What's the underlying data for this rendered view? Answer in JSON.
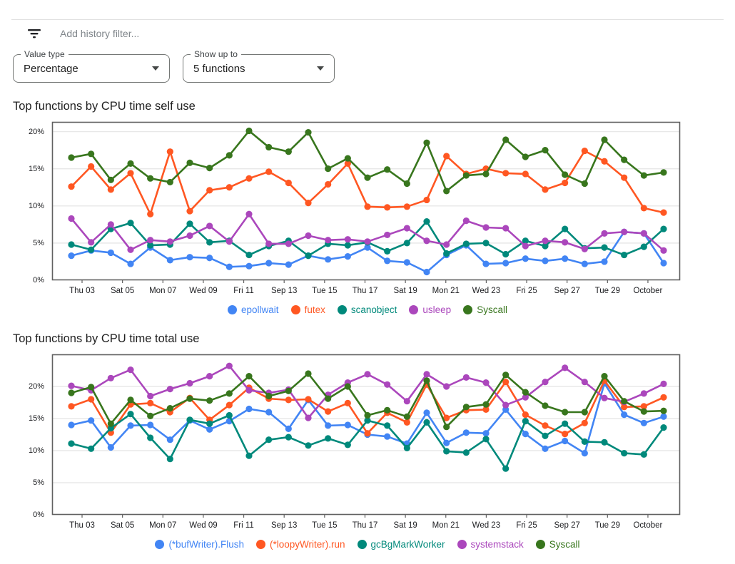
{
  "filter_bar": {
    "placeholder": "Add history filter...",
    "icon": "filter-list-icon"
  },
  "controls": {
    "value_type": {
      "label": "Value type",
      "value": "Percentage"
    },
    "show_up_to": {
      "label": "Show up to",
      "value": "5 functions"
    }
  },
  "colors": {
    "blue": "#4285F4",
    "orange": "#FF5722",
    "teal": "#00897B",
    "purple": "#AB47BC",
    "green": "#38761D",
    "axis": "#616161",
    "grid": "#e8e8e8",
    "tick_text": "#202124"
  },
  "chart_data": [
    {
      "type": "line",
      "title": "Top functions by CPU time self use",
      "x_labels": [
        "Thu 03",
        "Sat 05",
        "Mon 07",
        "Wed 09",
        "Fri 11",
        "Sep 13",
        "Tue 15",
        "Thu 17",
        "Sat 19",
        "Mon 21",
        "Wed 23",
        "Fri 25",
        "Sep 27",
        "Tue 29",
        "October"
      ],
      "y_tick_values": [
        0,
        5,
        10,
        15,
        20
      ],
      "y_tick_labels": [
        "0%",
        "5%",
        "10%",
        "15%",
        "20%"
      ],
      "ylim": [
        0,
        21.3
      ],
      "grid": true,
      "legend_position": "bottom",
      "series": [
        {
          "name": "epollwait",
          "color": "#4285F4",
          "values": [
            3.3,
            4.0,
            3.7,
            2.2,
            4.4,
            2.7,
            3.1,
            3.0,
            1.8,
            1.9,
            2.3,
            2.1,
            3.3,
            2.8,
            3.2,
            4.4,
            2.6,
            2.4,
            1.1,
            3.4,
            4.7,
            2.2,
            2.3,
            2.9,
            2.6,
            2.9,
            2.2,
            2.5,
            6.5,
            6.3,
            2.3
          ]
        },
        {
          "name": "futex",
          "color": "#FF5722",
          "values": [
            12.6,
            15.3,
            12.2,
            14.4,
            8.9,
            17.3,
            9.3,
            12.1,
            12.5,
            13.7,
            14.6,
            13.1,
            10.4,
            12.9,
            15.7,
            9.9,
            9.8,
            9.9,
            10.8,
            16.7,
            14.3,
            15.0,
            14.4,
            14.3,
            12.2,
            13.1,
            17.4,
            16.0,
            13.8,
            9.7,
            9.1
          ]
        },
        {
          "name": "scanobject",
          "color": "#00897B",
          "values": [
            4.8,
            4.1,
            6.9,
            7.7,
            4.7,
            4.8,
            7.6,
            5.1,
            5.3,
            3.4,
            4.6,
            5.3,
            3.3,
            4.9,
            4.7,
            5.1,
            3.9,
            5.0,
            7.9,
            3.6,
            4.9,
            5.0,
            3.5,
            5.3,
            4.6,
            6.9,
            4.3,
            4.4,
            3.4,
            4.5,
            6.9
          ]
        },
        {
          "name": "usleep",
          "color": "#AB47BC",
          "values": [
            8.3,
            5.1,
            7.5,
            4.1,
            5.4,
            5.2,
            6.0,
            7.3,
            5.2,
            8.9,
            4.9,
            4.9,
            6.0,
            5.4,
            5.5,
            5.2,
            6.1,
            7.0,
            5.3,
            4.8,
            8.0,
            7.1,
            7.0,
            4.6,
            5.3,
            5.1,
            4.2,
            6.3,
            6.5,
            6.3,
            4.0
          ]
        },
        {
          "name": "Syscall",
          "color": "#38761D",
          "values": [
            16.5,
            17.0,
            13.5,
            15.7,
            13.7,
            13.2,
            15.8,
            15.1,
            16.8,
            20.1,
            17.9,
            17.3,
            19.9,
            15.0,
            16.4,
            13.8,
            14.9,
            13.0,
            18.5,
            12.0,
            14.1,
            14.3,
            18.9,
            16.6,
            17.5,
            14.2,
            13.0,
            18.9,
            16.2,
            14.1,
            14.5
          ]
        }
      ]
    },
    {
      "type": "line",
      "title": "Top functions by CPU time total use",
      "x_labels": [
        "Thu 03",
        "Sat 05",
        "Mon 07",
        "Wed 09",
        "Fri 11",
        "Sep 13",
        "Tue 15",
        "Thu 17",
        "Sat 19",
        "Mon 21",
        "Wed 23",
        "Fri 25",
        "Sep 27",
        "Tue 29",
        "October"
      ],
      "y_tick_values": [
        0,
        5,
        10,
        15,
        20
      ],
      "y_tick_labels": [
        "0%",
        "5%",
        "10%",
        "15%",
        "20%"
      ],
      "ylim": [
        0,
        25
      ],
      "grid": true,
      "legend_position": "bottom",
      "series": [
        {
          "name": "(*bufWriter).Flush",
          "color": "#4285F4",
          "values": [
            14.0,
            14.7,
            10.5,
            13.9,
            14.0,
            11.7,
            14.7,
            13.3,
            14.6,
            16.5,
            16.0,
            13.4,
            17.9,
            13.9,
            14.0,
            12.5,
            12.2,
            11.1,
            15.9,
            11.2,
            12.8,
            12.7,
            16.4,
            12.6,
            10.3,
            11.5,
            9.6,
            20.5,
            15.6,
            14.3,
            15.3
          ]
        },
        {
          "name": "(*loopyWriter).run",
          "color": "#FF5722",
          "values": [
            16.9,
            18.0,
            12.8,
            17.2,
            17.4,
            16.0,
            18.2,
            14.8,
            17.1,
            19.8,
            18.1,
            17.9,
            18.0,
            16.1,
            17.4,
            12.7,
            15.9,
            14.4,
            20.3,
            15.1,
            16.3,
            16.4,
            20.7,
            15.6,
            13.9,
            12.6,
            14.3,
            20.9,
            16.8,
            16.9,
            18.3
          ]
        },
        {
          "name": "gcBgMarkWorker",
          "color": "#00897B",
          "values": [
            11.1,
            10.3,
            13.5,
            15.7,
            12.0,
            8.7,
            14.8,
            14.2,
            15.5,
            9.2,
            11.7,
            12.1,
            10.8,
            11.9,
            10.9,
            14.7,
            13.9,
            10.4,
            14.4,
            9.9,
            9.7,
            11.8,
            7.2,
            14.6,
            12.3,
            14.2,
            11.4,
            11.3,
            9.6,
            9.4,
            13.6
          ]
        },
        {
          "name": "systemstack",
          "color": "#AB47BC",
          "values": [
            20.1,
            19.4,
            21.3,
            22.6,
            18.5,
            19.6,
            20.5,
            21.6,
            23.2,
            19.4,
            19.0,
            19.5,
            15.1,
            18.7,
            20.6,
            21.9,
            20.3,
            17.7,
            21.9,
            20.0,
            21.4,
            20.6,
            17.1,
            18.3,
            20.7,
            22.9,
            20.7,
            18.2,
            17.6,
            18.9,
            20.4
          ]
        },
        {
          "name": "Syscall",
          "color": "#38761D",
          "values": [
            19.0,
            19.9,
            14.2,
            17.9,
            15.4,
            16.6,
            18.1,
            17.8,
            18.9,
            21.6,
            18.5,
            19.3,
            22.0,
            18.1,
            20.0,
            15.5,
            16.3,
            15.3,
            20.9,
            13.7,
            16.8,
            17.2,
            21.8,
            19.1,
            17.0,
            16.0,
            16.0,
            21.6,
            17.7,
            16.1,
            16.2
          ]
        }
      ]
    }
  ]
}
